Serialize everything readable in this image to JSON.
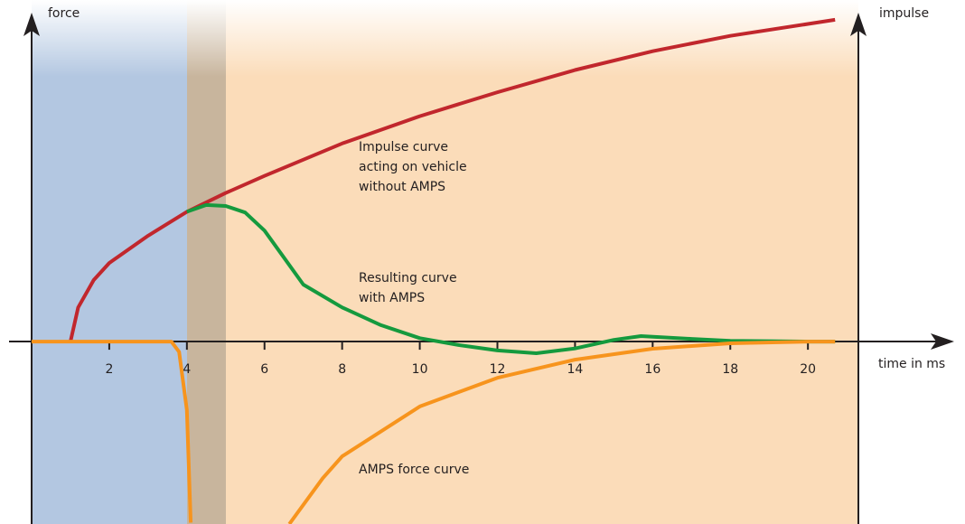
{
  "chart_data": {
    "type": "line",
    "y_label": "force",
    "y2_label": "impulse",
    "x_label": "time in ms",
    "xlim": [
      0,
      21.3
    ],
    "ylim": [
      -5.34,
      10
    ],
    "xticks": [
      2,
      4,
      6,
      8,
      10,
      12,
      14,
      16,
      18,
      20
    ],
    "series": [
      {
        "name": "Impulse curve acting on vehicle without AMPS",
        "color": "#c1272d",
        "x": [
          1,
          1.2,
          1.6,
          2,
          3,
          4,
          5,
          6,
          8,
          10,
          12,
          14,
          16,
          18,
          20,
          20.7
        ],
        "values": [
          0,
          1.0,
          1.8,
          2.3,
          3.1,
          3.8,
          4.35,
          4.85,
          5.8,
          6.6,
          7.3,
          7.95,
          8.5,
          8.95,
          9.3,
          9.42
        ]
      },
      {
        "name": "Resulting curve with AMPS",
        "color": "#159a3e",
        "x": [
          4,
          4.5,
          5,
          5.5,
          6,
          6.5,
          7,
          8,
          9,
          10,
          11,
          12,
          13,
          14,
          15,
          15.7,
          17,
          18,
          20,
          20.7
        ],
        "values": [
          3.8,
          4.0,
          3.97,
          3.78,
          3.25,
          2.46,
          1.67,
          1.0,
          0.48,
          0.1,
          -0.1,
          -0.26,
          -0.34,
          -0.2,
          0.05,
          0.16,
          0.08,
          0.02,
          0,
          0
        ]
      },
      {
        "name": "AMPS force curve",
        "color": "#f7941d",
        "x": [
          0,
          3.6,
          3.8,
          4.0,
          4.1,
          6.2,
          6.64,
          7.5,
          8,
          10,
          12,
          14,
          16,
          18,
          20,
          20.7
        ],
        "values": [
          0,
          0,
          -0.3,
          -2,
          -5.3,
          null,
          -5.34,
          -4.0,
          -3.36,
          -1.9,
          -1.06,
          -0.53,
          -0.21,
          -0.05,
          0,
          0
        ]
      }
    ],
    "annotations": [
      [
        "Impulse curve",
        "acting on vehicle",
        "without AMPS"
      ],
      [
        "Resulting curve",
        "with AMPS"
      ],
      [
        "AMPS force curve"
      ]
    ]
  }
}
